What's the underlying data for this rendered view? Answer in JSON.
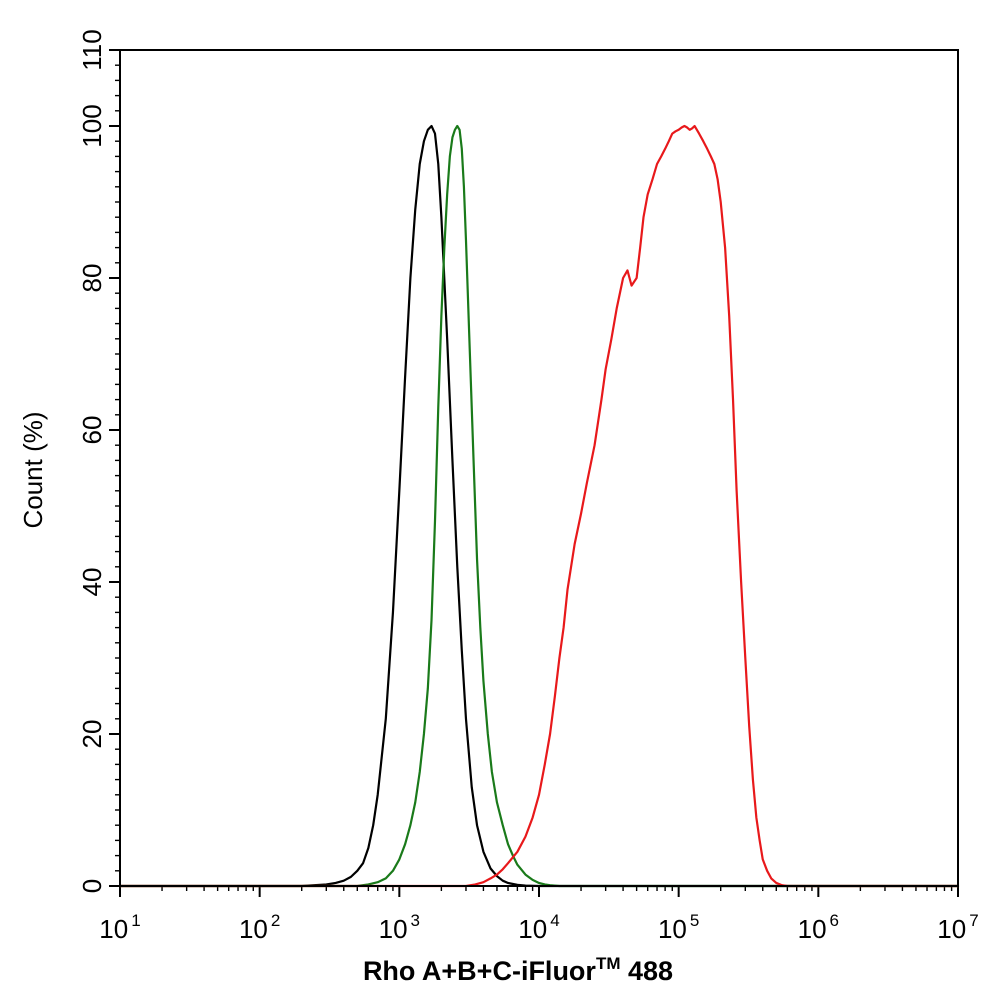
{
  "chart_data": {
    "type": "line",
    "title": "",
    "xlabel": "Rho A+B+C-iFluor",
    "xlabel_sup": "TM",
    "xlabel_suffix": " 488",
    "ylabel": "Count  (%)",
    "xscale": "log",
    "xlim": [
      10,
      10000000
    ],
    "ylim": [
      0,
      110
    ],
    "x_ticks": [
      {
        "base": "10",
        "exp": "1"
      },
      {
        "base": "10",
        "exp": "2"
      },
      {
        "base": "10",
        "exp": "3"
      },
      {
        "base": "10",
        "exp": "4"
      },
      {
        "base": "10",
        "exp": "5"
      },
      {
        "base": "10",
        "exp": "6"
      },
      {
        "base": "10",
        "exp": "7"
      }
    ],
    "y_ticks": [
      "0",
      "20",
      "40",
      "60",
      "80",
      "100",
      "110"
    ],
    "grid": false,
    "legend": "none",
    "series": [
      {
        "color": "#000000",
        "x": [
          10,
          200,
          300,
          350,
          400,
          450,
          500,
          550,
          600,
          650,
          700,
          800,
          900,
          1000,
          1100,
          1200,
          1300,
          1400,
          1500,
          1600,
          1700,
          1800,
          1900,
          2000,
          2200,
          2400,
          2600,
          2800,
          3000,
          3300,
          3600,
          4000,
          4500,
          5000,
          5500,
          6000,
          7000,
          8000,
          10000,
          10000000
        ],
        "y": [
          0,
          0,
          0.2,
          0.4,
          0.7,
          1.2,
          2,
          3,
          5,
          8,
          12,
          22,
          36,
          52,
          67,
          80,
          89,
          95,
          98,
          99.5,
          100,
          99,
          95,
          88,
          72,
          56,
          42,
          31,
          22,
          13,
          8,
          4.5,
          2.3,
          1.3,
          0.7,
          0.4,
          0.15,
          0.05,
          0,
          0
        ]
      },
      {
        "color": "#1a7a1a",
        "x": [
          10,
          500,
          600,
          700,
          800,
          900,
          1000,
          1100,
          1200,
          1300,
          1400,
          1500,
          1600,
          1700,
          1800,
          1900,
          2000,
          2100,
          2200,
          2300,
          2400,
          2500,
          2600,
          2700,
          2800,
          2900,
          3000,
          3200,
          3400,
          3600,
          3800,
          4000,
          4300,
          4600,
          5000,
          5500,
          6000,
          6500,
          7000,
          8000,
          9000,
          10000,
          11000,
          12000,
          14000,
          10000000
        ],
        "y": [
          0,
          0,
          0.2,
          0.5,
          1,
          2,
          3.5,
          5.5,
          8,
          11,
          15,
          20,
          26,
          35,
          48,
          63,
          75,
          84,
          91,
          96,
          98.5,
          99.5,
          100,
          99.5,
          97,
          92,
          85,
          70,
          56,
          43,
          34,
          27,
          20,
          15,
          11,
          8,
          5.5,
          4,
          2.8,
          1.5,
          0.8,
          0.4,
          0.2,
          0.1,
          0,
          0
        ]
      },
      {
        "color": "#e8191b",
        "x": [
          10,
          3000,
          3500,
          4000,
          4500,
          5000,
          5500,
          6000,
          7000,
          8000,
          9000,
          10000,
          11000,
          12000,
          13000,
          14000,
          15000,
          16000,
          18000,
          20000,
          22000,
          25000,
          28000,
          30000,
          33000,
          36000,
          40000,
          43000,
          46000,
          50000,
          53000,
          56000,
          60000,
          65000,
          70000,
          75000,
          80000,
          85000,
          90000,
          95000,
          100000,
          105000,
          110000,
          115000,
          120000,
          125000,
          130000,
          135000,
          140000,
          150000,
          160000,
          170000,
          180000,
          190000,
          200000,
          215000,
          230000,
          245000,
          260000,
          280000,
          300000,
          320000,
          340000,
          360000,
          380000,
          400000,
          430000,
          460000,
          500000,
          550000,
          600000,
          650000,
          700000,
          10000000
        ],
        "y": [
          0,
          0,
          0.2,
          0.5,
          1,
          1.5,
          2.2,
          3,
          4.5,
          6.5,
          9,
          12,
          16,
          20,
          25,
          30,
          34,
          39,
          45,
          49,
          53,
          58,
          64,
          68,
          72,
          76,
          80,
          81,
          79,
          80,
          84,
          88,
          91,
          93,
          95,
          96,
          97,
          98,
          99,
          99.3,
          99.5,
          99.8,
          100,
          99.8,
          99.5,
          99.7,
          100,
          99.5,
          99,
          98,
          97,
          96,
          95,
          93,
          90,
          84,
          75,
          64,
          52,
          40,
          30,
          21,
          14,
          9,
          6,
          3.5,
          2,
          1,
          0.4,
          0.1,
          0,
          0,
          0,
          0
        ]
      }
    ]
  }
}
